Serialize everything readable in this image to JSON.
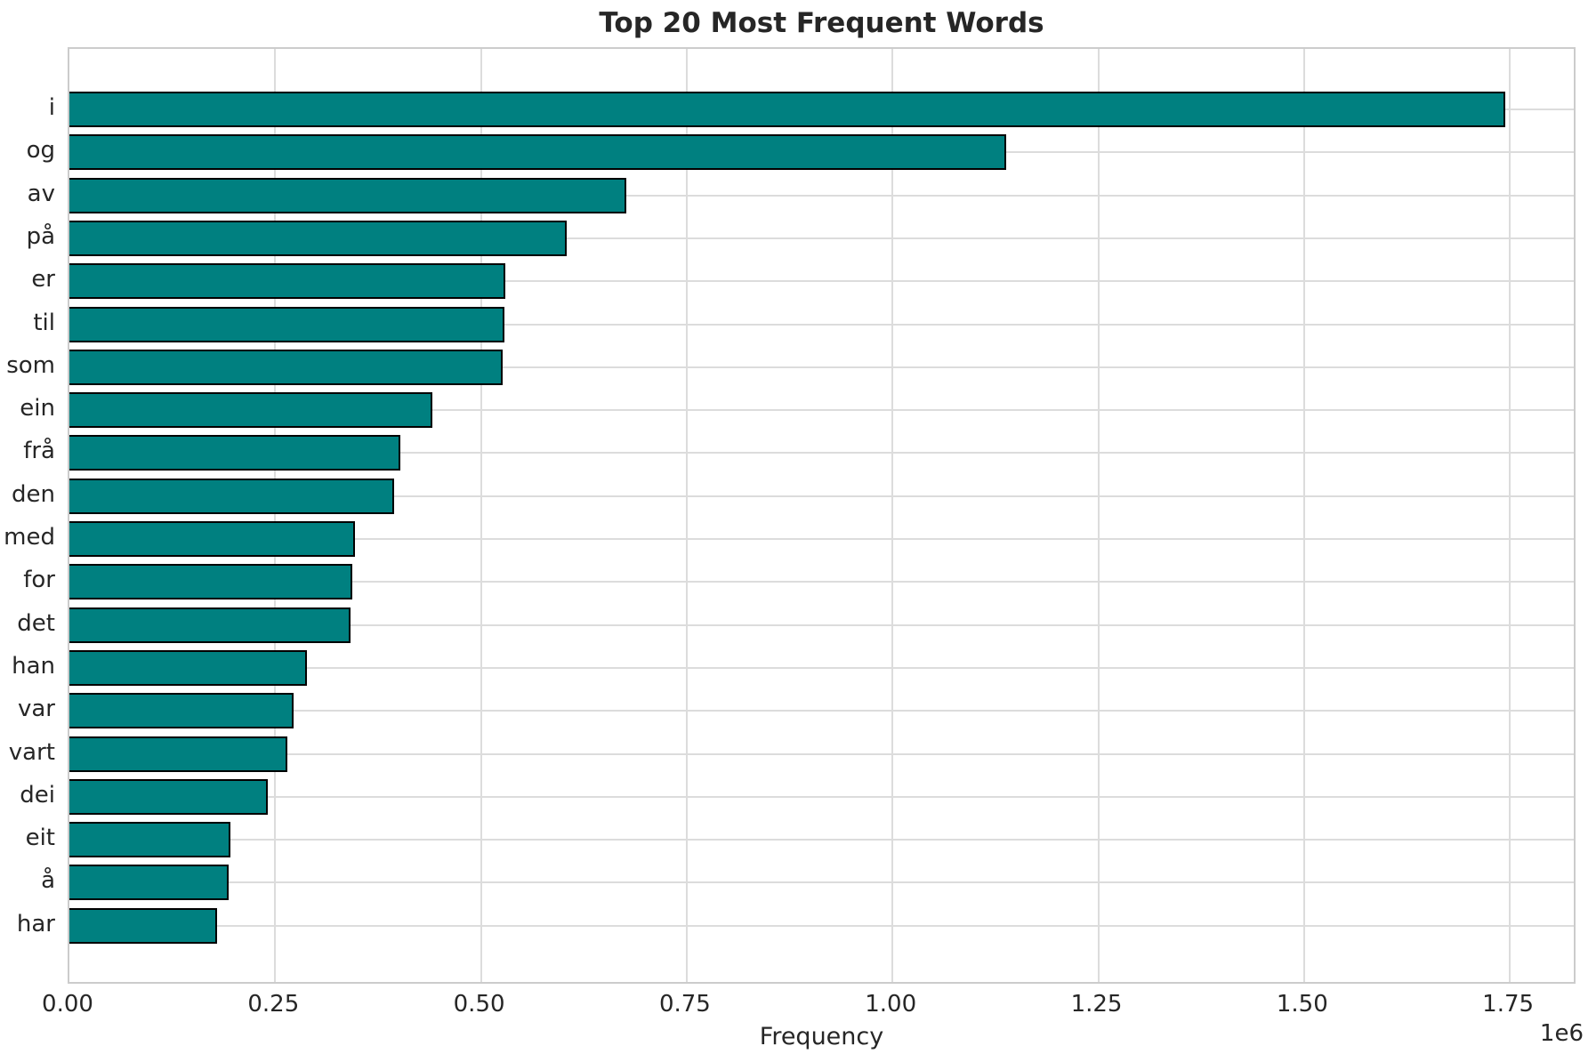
{
  "figure": {
    "kind": "matplotlib-style static chart image"
  },
  "colors": {
    "bar_fill": "#008080",
    "bar_edge": "#000000",
    "grid": "#dcdcdc",
    "spine": "#cccccc",
    "text": "#262626",
    "background": "#ffffff"
  },
  "chart_data": {
    "type": "bar",
    "orientation": "horizontal",
    "title": "Top 20 Most Frequent Words",
    "xlabel": "Frequency",
    "ylabel": "",
    "offset_text": "1e6",
    "grid": true,
    "legend": false,
    "categories": [
      "i",
      "og",
      "av",
      "på",
      "er",
      "til",
      "som",
      "ein",
      "frå",
      "den",
      "med",
      "for",
      "det",
      "han",
      "var",
      "vart",
      "dei",
      "eit",
      "å",
      "har"
    ],
    "values": [
      1744000,
      1138000,
      677000,
      604000,
      530000,
      528000,
      526000,
      441000,
      402000,
      394000,
      347000,
      344000,
      342000,
      288000,
      272000,
      265000,
      241000,
      196000,
      193000,
      179000
    ],
    "xlim": [
      0,
      1832000
    ],
    "x_ticks": [
      {
        "label": "0.00",
        "value": 0
      },
      {
        "label": "0.25",
        "value": 250000
      },
      {
        "label": "0.50",
        "value": 500000
      },
      {
        "label": "0.75",
        "value": 750000
      },
      {
        "label": "1.00",
        "value": 1000000
      },
      {
        "label": "1.25",
        "value": 1250000
      },
      {
        "label": "1.50",
        "value": 1500000
      },
      {
        "label": "1.75",
        "value": 1750000
      }
    ]
  }
}
